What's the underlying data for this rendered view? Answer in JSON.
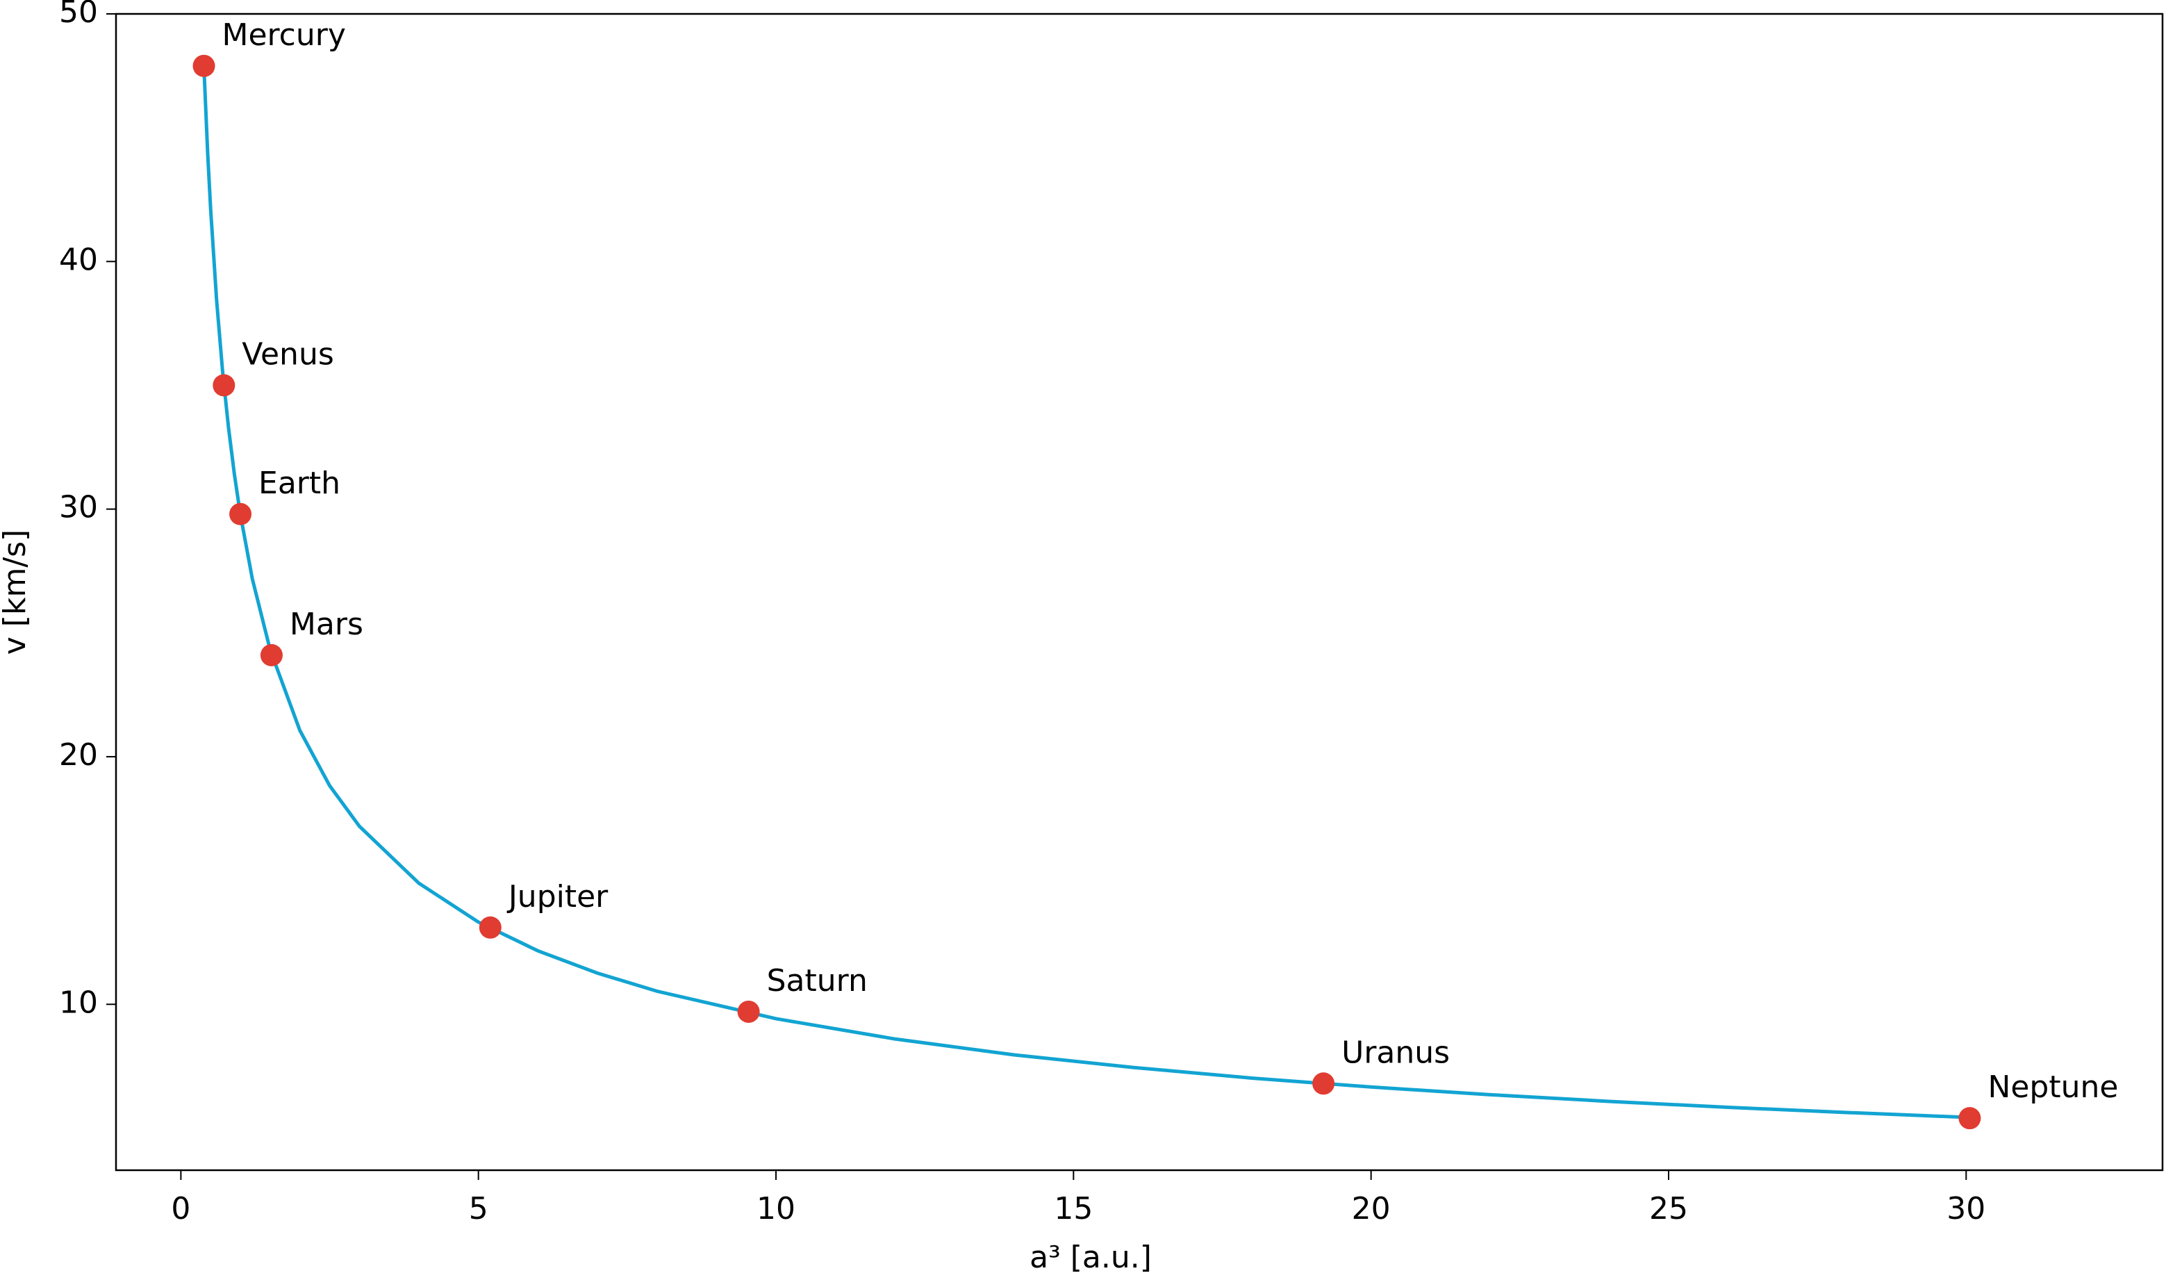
{
  "chart_data": {
    "type": "scatter",
    "xlabel": "a³ [a.u.]",
    "ylabel": "v [km/s]",
    "xlim": [
      -1.09,
      33.3
    ],
    "ylim": [
      3.3,
      50
    ],
    "xticks": [
      0,
      5,
      10,
      15,
      20,
      25,
      30
    ],
    "yticks": [
      10,
      20,
      30,
      40,
      50
    ],
    "curve": {
      "color": "#12a4d2",
      "x": [
        0.387,
        0.45,
        0.5,
        0.6,
        0.7,
        0.8,
        0.9,
        1,
        1.2,
        1.5,
        2,
        2.5,
        3,
        4,
        5,
        6,
        7,
        8,
        10,
        12,
        14,
        16,
        18,
        20,
        22,
        24,
        26,
        28,
        30.06
      ],
      "values": [
        47.87,
        44.39,
        42.12,
        38.45,
        35.59,
        33.3,
        31.39,
        29.78,
        27.19,
        24.32,
        21.06,
        18.83,
        17.19,
        14.89,
        13.32,
        12.16,
        11.26,
        10.53,
        9.42,
        8.6,
        7.96,
        7.45,
        7.02,
        6.66,
        6.35,
        6.08,
        5.84,
        5.63,
        5.43
      ]
    },
    "points": {
      "color": "#e03c31",
      "labels": [
        "Mercury",
        "Venus",
        "Earth",
        "Mars",
        "Jupiter",
        "Saturn",
        "Uranus",
        "Neptune"
      ],
      "x": [
        0.387,
        0.723,
        1,
        1.524,
        5.2,
        9.54,
        19.2,
        30.06
      ],
      "values": [
        47.9,
        35.0,
        29.8,
        24.1,
        13.1,
        9.7,
        6.8,
        5.4
      ]
    }
  }
}
